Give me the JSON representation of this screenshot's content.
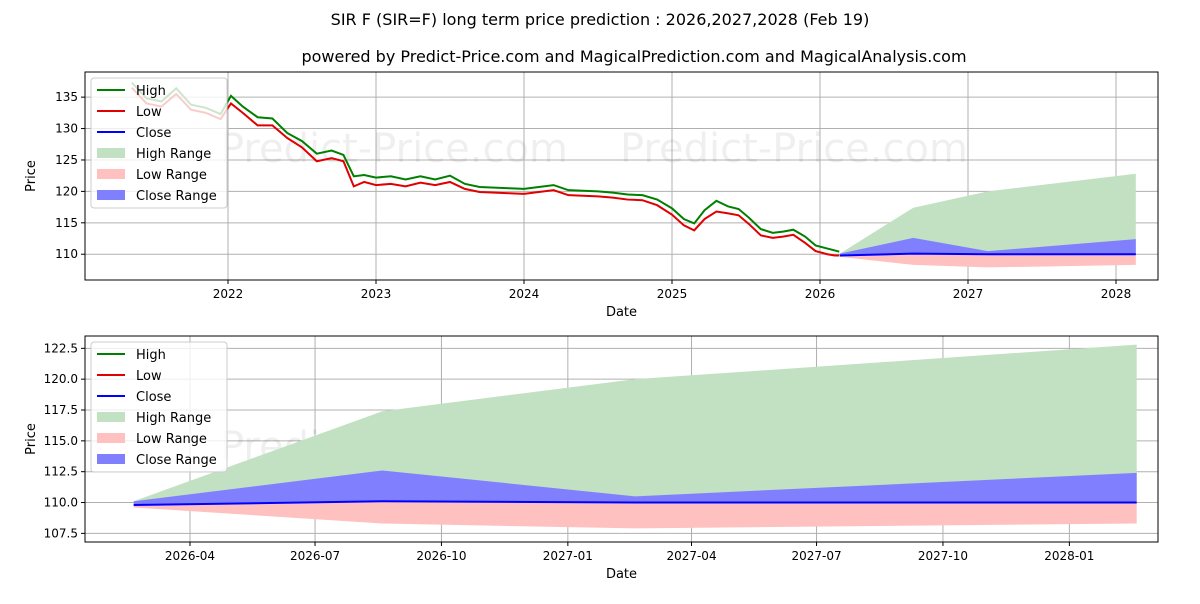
{
  "title": "SIR F (SIR=F) long term price prediction : 2026,2027,2028 (Feb 19)",
  "subtitle": "powered by Predict-Price.com and MagicalPrediction.com and MagicalAnalysis.com",
  "watermark": "Predict-Price.com",
  "colors": {
    "high": "#008000",
    "low": "#e00000",
    "close": "#0000ff",
    "high_range": "#c2e0c2",
    "low_range": "#ffc0c0",
    "close_range": "#8080ff"
  },
  "legend": [
    "High",
    "Low",
    "Close",
    "High Range",
    "Low Range",
    "Close Range"
  ],
  "chart_data": [
    {
      "type": "line",
      "xlabel": "Date",
      "ylabel": "Price",
      "ylim": [
        105.9,
        139
      ],
      "xlim": [
        2021.0,
        2028.3
      ],
      "xticks": [
        "2022",
        "2023",
        "2024",
        "2025",
        "2026",
        "2027",
        "2028"
      ],
      "xtick_values": [
        2022,
        2023,
        2024,
        2025,
        2026,
        2027,
        2028
      ],
      "yticks": [
        110,
        115,
        120,
        125,
        130,
        135
      ],
      "grid": true,
      "legend_position": "top-left",
      "history": {
        "x": [
          2021.35,
          2021.45,
          2021.55,
          2021.65,
          2021.75,
          2021.85,
          2021.95,
          2022.02,
          2022.1,
          2022.2,
          2022.3,
          2022.4,
          2022.5,
          2022.6,
          2022.7,
          2022.78,
          2022.85,
          2022.92,
          2023.0,
          2023.1,
          2023.2,
          2023.3,
          2023.4,
          2023.5,
          2023.6,
          2023.7,
          2023.8,
          2023.9,
          2024.0,
          2024.1,
          2024.2,
          2024.3,
          2024.4,
          2024.5,
          2024.6,
          2024.7,
          2024.8,
          2024.9,
          2025.0,
          2025.08,
          2025.15,
          2025.22,
          2025.3,
          2025.38,
          2025.45,
          2025.52,
          2025.6,
          2025.68,
          2025.75,
          2025.82,
          2025.9,
          2025.97,
          2026.05,
          2026.1,
          2026.13
        ],
        "low": [
          136.5,
          134.0,
          133.5,
          135.5,
          133.0,
          132.5,
          131.5,
          134.0,
          132.5,
          130.5,
          130.5,
          128.5,
          127.0,
          124.8,
          125.3,
          124.8,
          120.8,
          121.5,
          121.0,
          121.2,
          120.8,
          121.4,
          121.0,
          121.5,
          120.4,
          119.9,
          119.8,
          119.7,
          119.6,
          119.9,
          120.2,
          119.4,
          119.3,
          119.2,
          119.0,
          118.7,
          118.6,
          117.8,
          116.3,
          114.6,
          113.8,
          115.6,
          116.8,
          116.5,
          116.2,
          114.8,
          113.0,
          112.6,
          112.8,
          113.1,
          111.8,
          110.5,
          110.0,
          109.8,
          109.8
        ],
        "high": [
          137.3,
          134.8,
          134.3,
          136.4,
          133.8,
          133.3,
          132.3,
          135.2,
          133.5,
          131.8,
          131.6,
          129.3,
          128.0,
          126.0,
          126.5,
          125.8,
          122.4,
          122.6,
          122.2,
          122.4,
          121.9,
          122.4,
          121.9,
          122.5,
          121.2,
          120.7,
          120.6,
          120.5,
          120.4,
          120.7,
          121.0,
          120.2,
          120.1,
          120.0,
          119.8,
          119.5,
          119.4,
          118.7,
          117.3,
          115.6,
          114.9,
          117.0,
          118.5,
          117.6,
          117.2,
          115.8,
          114.0,
          113.4,
          113.6,
          113.9,
          112.8,
          111.4,
          110.9,
          110.6,
          110.4
        ]
      }
    },
    {
      "type": "area",
      "xlabel": "Date",
      "ylabel": "Price",
      "ylim": [
        106.8,
        123.5
      ],
      "xlim": [
        "2026-01-20",
        "2028-03-31"
      ],
      "xticks": [
        "2026-04",
        "2026-07",
        "2026-10",
        "2027-01",
        "2027-04",
        "2027-07",
        "2027-10",
        "2028-01"
      ],
      "yticks": [
        "107.5",
        "110.0",
        "112.5",
        "115.0",
        "117.5",
        "120.0",
        "122.5"
      ],
      "grid": true,
      "legend_position": "top-left",
      "forecast": {
        "dates": [
          "2026-02-19",
          "2026-08-19",
          "2027-02-19",
          "2028-02-19"
        ],
        "close": [
          109.8,
          110.1,
          110.0,
          110.0
        ],
        "close_range_high": [
          110.1,
          112.6,
          110.5,
          112.4
        ],
        "high_range": [
          110.1,
          117.4,
          120.0,
          122.8
        ],
        "low_range": [
          109.6,
          108.3,
          107.9,
          108.3
        ]
      }
    }
  ]
}
